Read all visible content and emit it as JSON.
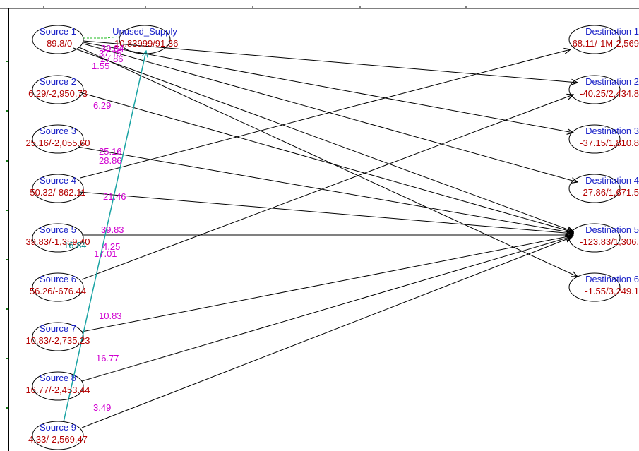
{
  "colors": {
    "title_text": "#1a22c8",
    "sub_text": "#b40000",
    "flow_text": "#d000d0",
    "special_text": "#008888",
    "arc": "#000000",
    "special_arc": "#19a3a3",
    "node_stroke": "#000000"
  },
  "nodes": [
    {
      "id": "s1",
      "title": "Source 1",
      "sub": "-89.8/0"
    },
    {
      "id": "s2",
      "title": "Source 2",
      "sub": "6.29/-2,950.73"
    },
    {
      "id": "s3",
      "title": "Source 3",
      "sub": "25.16/-2,055.60"
    },
    {
      "id": "s4",
      "title": "Source 4",
      "sub": "50.32/-862.11"
    },
    {
      "id": "s5",
      "title": "Source 5",
      "sub": "39.83/-1,359.40"
    },
    {
      "id": "s6",
      "title": "Source 6",
      "sub": "56.26/-676.44"
    },
    {
      "id": "s7",
      "title": "Source 7",
      "sub": "10.83/-2,735.23"
    },
    {
      "id": "s8",
      "title": "Source 8",
      "sub": "16.77/-2,453.44"
    },
    {
      "id": "s9",
      "title": "Source 9",
      "sub": "4.33/-2,569.47"
    },
    {
      "id": "u",
      "title": "Unused_Supply",
      "sub": "-10.83999/91.36"
    },
    {
      "id": "d1",
      "title": "Destination 1",
      "sub": "-68.11/-1M-2,569"
    },
    {
      "id": "d2",
      "title": "Destination 2",
      "sub": "-40.25/2,434.8"
    },
    {
      "id": "d3",
      "title": "Destination 3",
      "sub": "-37.15/1,810.8"
    },
    {
      "id": "d4",
      "title": "Destination 4",
      "sub": "-27.86/1,671.5"
    },
    {
      "id": "d5",
      "title": "Destination 5",
      "sub": "-123.83/1,306."
    },
    {
      "id": "d6",
      "title": "Destination 6",
      "sub": "-1.55/3,249.1"
    }
  ],
  "arcs": [
    {
      "from": "s1",
      "to": "d2"
    },
    {
      "from": "s1",
      "to": "d3"
    },
    {
      "from": "s1",
      "to": "d4"
    },
    {
      "from": "s1",
      "to": "d6"
    },
    {
      "from": "s1",
      "to": "d5"
    },
    {
      "from": "s2",
      "to": "d5"
    },
    {
      "from": "s3",
      "to": "d5"
    },
    {
      "from": "s4",
      "to": "d1"
    },
    {
      "from": "s4",
      "to": "d5"
    },
    {
      "from": "s5",
      "to": "d5"
    },
    {
      "from": "s6",
      "to": "d2"
    },
    {
      "from": "s7",
      "to": "d5"
    },
    {
      "from": "s8",
      "to": "d5"
    },
    {
      "from": "s9",
      "to": "d5"
    },
    {
      "from": "s9",
      "to": "u",
      "special": true
    }
  ],
  "flow_labels": [
    {
      "text": "39.84",
      "color": "flow"
    },
    {
      "text": "37.15",
      "color": "flow"
    },
    {
      "text": "27.86",
      "color": "flow"
    },
    {
      "text": "1.55",
      "color": "flow"
    },
    {
      "text": "6.29",
      "color": "flow"
    },
    {
      "text": "25.16",
      "color": "flow"
    },
    {
      "text": "28.86",
      "color": "flow"
    },
    {
      "text": "21.46",
      "color": "flow"
    },
    {
      "text": "39.83",
      "color": "flow"
    },
    {
      "text": "16.84",
      "color": "special"
    },
    {
      "text": "4.25",
      "color": "flow"
    },
    {
      "text": "17.01",
      "color": "flow"
    },
    {
      "text": "10.83",
      "color": "flow"
    },
    {
      "text": "16.77",
      "color": "flow"
    },
    {
      "text": "3.49",
      "color": "flow"
    }
  ]
}
